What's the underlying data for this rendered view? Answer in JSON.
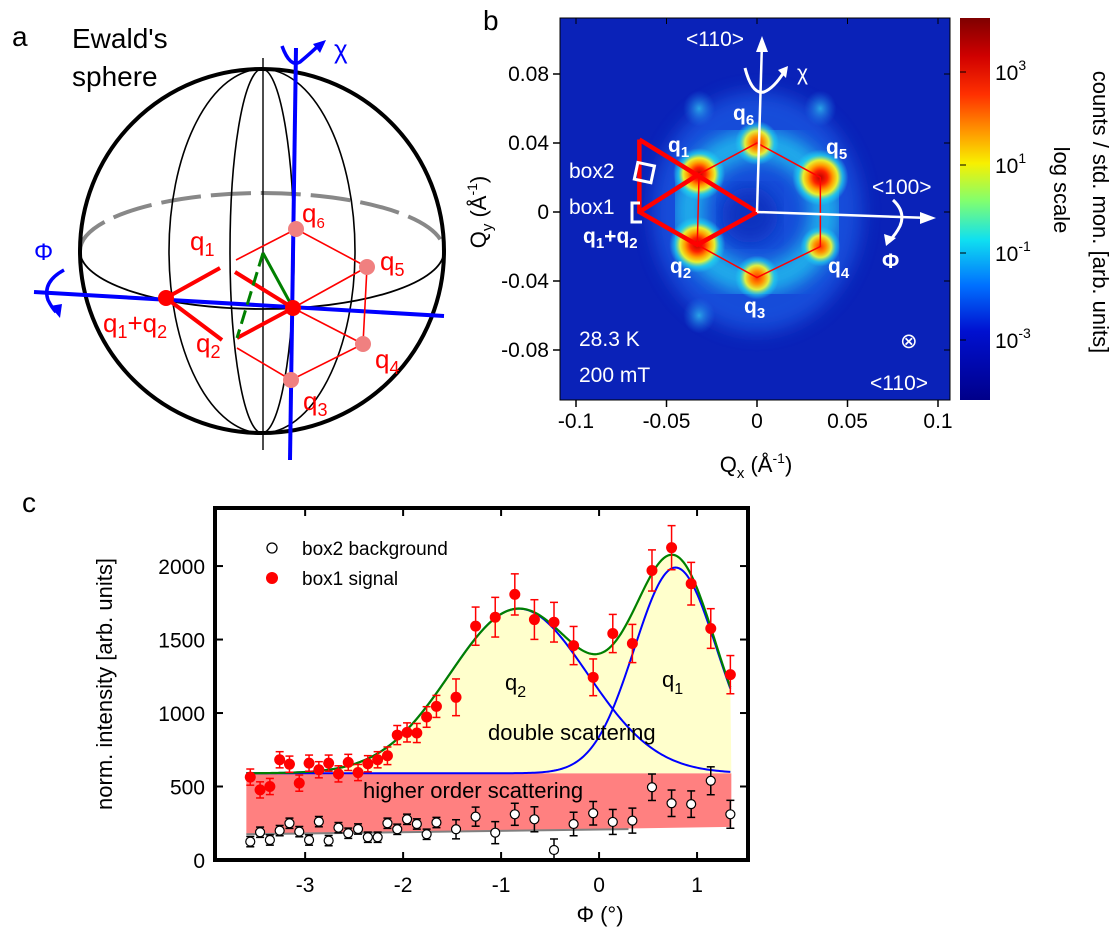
{
  "panel_a": {
    "label": "a",
    "title_lines": [
      "Ewald's",
      "sphere"
    ],
    "chi": "χ",
    "phi": "Φ",
    "q": [
      {
        "base": "q",
        "sub": "6"
      },
      {
        "base": "q",
        "sub": "1"
      },
      {
        "base": "q",
        "sub": "5"
      },
      {
        "base": "q",
        "sub": "2"
      },
      {
        "base": "q",
        "sub": "4"
      },
      {
        "base": "q",
        "sub": "3"
      }
    ],
    "q_sum": {
      "a": "q",
      "a_sub": "1",
      "plus": "+",
      "b": "q",
      "b_sub": "2"
    },
    "colors": {
      "axis": "#0000ff",
      "lattice": "#ff0000",
      "point_light": "#f08080",
      "construction": "#008000"
    }
  },
  "panel_b": {
    "label": "b",
    "xlabel": {
      "main": "Q",
      "sub": "x",
      "unit": " (Å",
      "exp": "-1",
      "close": ")"
    },
    "ylabel": {
      "main": "Q",
      "sub": "y",
      "unit": " (Å",
      "exp": "-1",
      "close": ")"
    },
    "xticks": [
      "-0.1",
      "-0.05",
      "0",
      "0.05",
      "0.1"
    ],
    "xtick_values": [
      -0.1,
      -0.05,
      0,
      0.05,
      0.1
    ],
    "yticks": [
      "0.08",
      "0.04",
      "0",
      "-0.04",
      "-0.08"
    ],
    "ytick_values": [
      0.08,
      0.04,
      0,
      -0.04,
      -0.08
    ],
    "colorbar": {
      "ticks": [
        {
          "base": "10",
          "exp": "3"
        },
        {
          "base": "10",
          "exp": "1"
        },
        {
          "base": "10",
          "exp": "-1"
        },
        {
          "base": "10",
          "exp": "-3"
        }
      ],
      "label": "counts / std. mon. [arb. units]",
      "scale_label": "log scale",
      "colormap": "jet",
      "scale": "log"
    },
    "q": [
      {
        "base": "q",
        "sub": "1"
      },
      {
        "base": "q",
        "sub": "6"
      },
      {
        "base": "q",
        "sub": "5"
      },
      {
        "base": "q",
        "sub": "2"
      },
      {
        "base": "q",
        "sub": "4"
      },
      {
        "base": "q",
        "sub": "3"
      }
    ],
    "q_sum": {
      "a": "q",
      "a_sub": "1",
      "plus": "+",
      "b": "q",
      "b_sub": "2"
    },
    "box2": "box2",
    "box1": "box1",
    "dir_up": "<110>",
    "dir_right": "<100>",
    "dir_out": "<110>",
    "out_symbol": "⊗",
    "chi": "χ",
    "phi": "Φ",
    "temperature": "28.3 K",
    "field": "200 mT",
    "peaks_qx_qy": [
      [
        -0.032,
        0.022
      ],
      [
        0.0,
        0.04
      ],
      [
        0.035,
        0.02
      ],
      [
        -0.033,
        -0.019
      ],
      [
        0.035,
        -0.02
      ],
      [
        0.0,
        -0.038
      ]
    ],
    "xlim": [
      -0.109,
      0.107
    ],
    "ylim": [
      -0.126,
      0.112
    ]
  },
  "chart_data": {
    "panel_label": "c",
    "type": "scatter",
    "xlabel": "Φ (°)",
    "ylabel": "norm. intensity [arb. units]",
    "xlim": [
      -3.92,
      1.52
    ],
    "ylim": [
      0,
      2395
    ],
    "xticks": [
      -3,
      -2,
      -1,
      0,
      1
    ],
    "xtick_labels": [
      "-3",
      "-2",
      "-1",
      "0",
      "1"
    ],
    "yticks": [
      0,
      500,
      1000,
      1500,
      2000
    ],
    "ytick_labels": [
      "0",
      "500",
      "1000",
      "1500",
      "2000"
    ],
    "legend_position": "top-left",
    "series": [
      {
        "name": "box2 background",
        "marker": "open-circle",
        "x": [
          -3.56,
          -3.46,
          -3.36,
          -3.26,
          -3.16,
          -3.06,
          -2.96,
          -2.86,
          -2.76,
          -2.66,
          -2.56,
          -2.46,
          -2.36,
          -2.26,
          -2.16,
          -2.06,
          -1.96,
          -1.86,
          -1.76,
          -1.66,
          -1.46,
          -1.26,
          -1.06,
          -0.86,
          -0.66,
          -0.46,
          -0.26,
          -0.06,
          0.14,
          0.34,
          0.54,
          0.74,
          0.94,
          1.14,
          1.34
        ],
        "y": [
          125,
          189,
          136,
          200,
          250,
          193,
          136,
          261,
          132,
          220,
          182,
          211,
          155,
          155,
          250,
          209,
          277,
          245,
          175,
          255,
          209,
          295,
          186,
          311,
          277,
          68,
          245,
          318,
          259,
          268,
          495,
          386,
          380,
          539,
          311
        ],
        "err": [
          35,
          35,
          35,
          35,
          35,
          35,
          35,
          35,
          35,
          35,
          35,
          35,
          35,
          35,
          35,
          35,
          35,
          35,
          35,
          35,
          65,
          65,
          75,
          75,
          85,
          75,
          80,
          80,
          85,
          85,
          90,
          90,
          90,
          95,
          95
        ]
      },
      {
        "name": "box1 signal",
        "marker": "filled-circle",
        "color": "#ff0000",
        "x": [
          -3.56,
          -3.46,
          -3.36,
          -3.26,
          -3.16,
          -3.06,
          -2.96,
          -2.86,
          -2.76,
          -2.66,
          -2.56,
          -2.46,
          -2.36,
          -2.26,
          -2.16,
          -2.06,
          -1.96,
          -1.86,
          -1.76,
          -1.66,
          -1.46,
          -1.26,
          -1.06,
          -0.86,
          -0.66,
          -0.46,
          -0.26,
          -0.06,
          0.14,
          0.34,
          0.54,
          0.74,
          0.94,
          1.14,
          1.34
        ],
        "y": [
          564,
          477,
          500,
          682,
          652,
          523,
          659,
          614,
          659,
          586,
          664,
          595,
          655,
          682,
          709,
          850,
          868,
          864,
          973,
          1045,
          1107,
          1591,
          1652,
          1807,
          1636,
          1618,
          1459,
          1243,
          1541,
          1473,
          1970,
          2125,
          1880,
          1575,
          1261
        ],
        "err": [
          55,
          55,
          55,
          55,
          55,
          55,
          55,
          55,
          55,
          55,
          55,
          55,
          55,
          55,
          60,
          65,
          65,
          65,
          70,
          75,
          125,
          130,
          135,
          140,
          135,
          135,
          130,
          125,
          130,
          130,
          140,
          150,
          145,
          135,
          130
        ]
      }
    ],
    "fit": {
      "baseline": 590,
      "background_line": [
        [
          -3.6,
          175
        ],
        [
          0.3,
          210
        ]
      ],
      "peaks": [
        {
          "label": "q2",
          "center": -0.82,
          "amplitude": 1120,
          "sigma": 0.7
        },
        {
          "label": "q1",
          "center": 0.78,
          "amplitude": 1400,
          "sigma": 0.42
        }
      ],
      "range": [
        -3.6,
        1.35
      ],
      "higher_order_band_bottom": [
        [
          -3.6,
          175
        ],
        [
          1.35,
          225
        ]
      ],
      "colors": {
        "total": "#008000",
        "components": "#0000ff",
        "double_fill": "#ffffcc",
        "higher_fill": "#ff8080"
      }
    },
    "annotations": {
      "q2": {
        "base": "q",
        "sub": "2"
      },
      "q1": {
        "base": "q",
        "sub": "1"
      },
      "double": "double scattering",
      "higher": "higher order scattering"
    }
  }
}
